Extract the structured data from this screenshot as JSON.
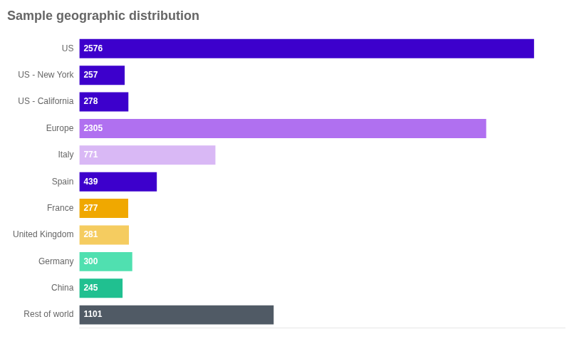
{
  "chart_data": {
    "type": "bar",
    "orientation": "horizontal",
    "title": "Sample geographic distribution",
    "categories": [
      "US",
      "US - New York",
      "US - California",
      "Europe",
      "Italy",
      "Spain",
      "France",
      "United Kingdom",
      "Germany",
      "China",
      "Rest of world"
    ],
    "values": [
      2576,
      257,
      278,
      2305,
      771,
      439,
      277,
      281,
      300,
      245,
      1101
    ],
    "colors": [
      "#3d00cc",
      "#3d00cc",
      "#3d00cc",
      "#b070f0",
      "#d9b8f5",
      "#3d00cc",
      "#f0a800",
      "#f5cc60",
      "#50e0b0",
      "#20c090",
      "#505a65"
    ],
    "xlim": [
      0,
      2750
    ],
    "grid": false,
    "data_labels": true,
    "tick_labels": "y"
  }
}
